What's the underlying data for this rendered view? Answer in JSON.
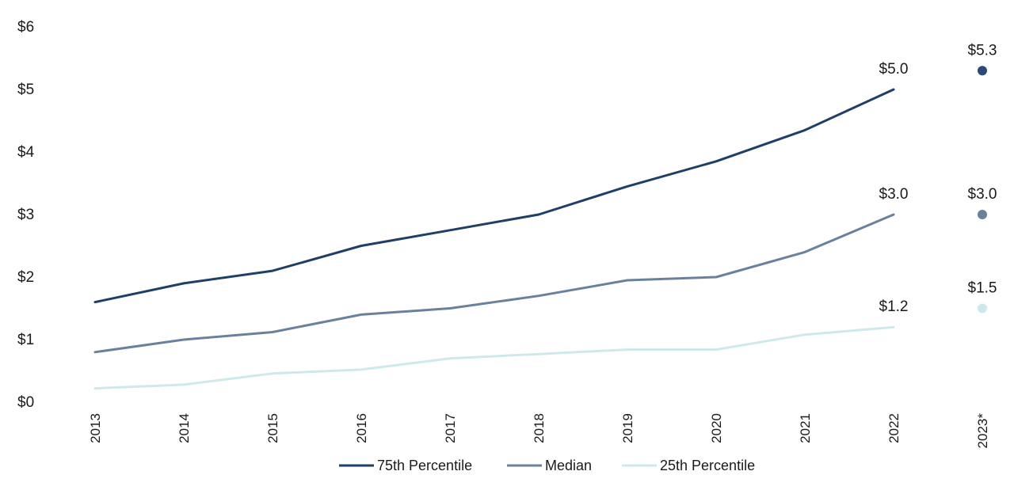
{
  "chart_data": {
    "type": "line",
    "title": "",
    "xlabel": "",
    "ylabel": "",
    "ylim": [
      0,
      6
    ],
    "grid": false,
    "legend_position": "bottom",
    "y_ticks": [
      "$0",
      "$1",
      "$2",
      "$3",
      "$4",
      "$5",
      "$6"
    ],
    "categories": [
      "2013",
      "2014",
      "2015",
      "2016",
      "2017",
      "2018",
      "2019",
      "2020",
      "2021",
      "2022"
    ],
    "series": [
      {
        "name": "75th Percentile",
        "color": "#1f3f66",
        "values": [
          1.6,
          1.9,
          2.1,
          2.5,
          2.75,
          3.0,
          3.45,
          3.85,
          4.35,
          5.0
        ]
      },
      {
        "name": "Median",
        "color": "#6a819d",
        "values": [
          0.8,
          1.0,
          1.12,
          1.4,
          1.5,
          1.7,
          1.95,
          2.0,
          2.4,
          3.0
        ]
      },
      {
        "name": "25th Percentile",
        "color": "#cfe9ea",
        "values": [
          0.22,
          0.28,
          0.46,
          0.52,
          0.7,
          0.77,
          0.84,
          0.84,
          1.08,
          1.2
        ]
      }
    ],
    "end_labels": [
      "$5.0",
      "$3.0",
      "$1.2"
    ],
    "projection": {
      "category": "2023*",
      "points": [
        {
          "series": "75th Percentile",
          "value": 5.3,
          "label": "$5.3",
          "color": "#2b4a75"
        },
        {
          "series": "Median",
          "value": 3.0,
          "label": "$3.0",
          "color": "#6a819d"
        },
        {
          "series": "25th Percentile",
          "value": 1.5,
          "label": "$1.5",
          "color": "#cfe9ea"
        }
      ]
    }
  }
}
